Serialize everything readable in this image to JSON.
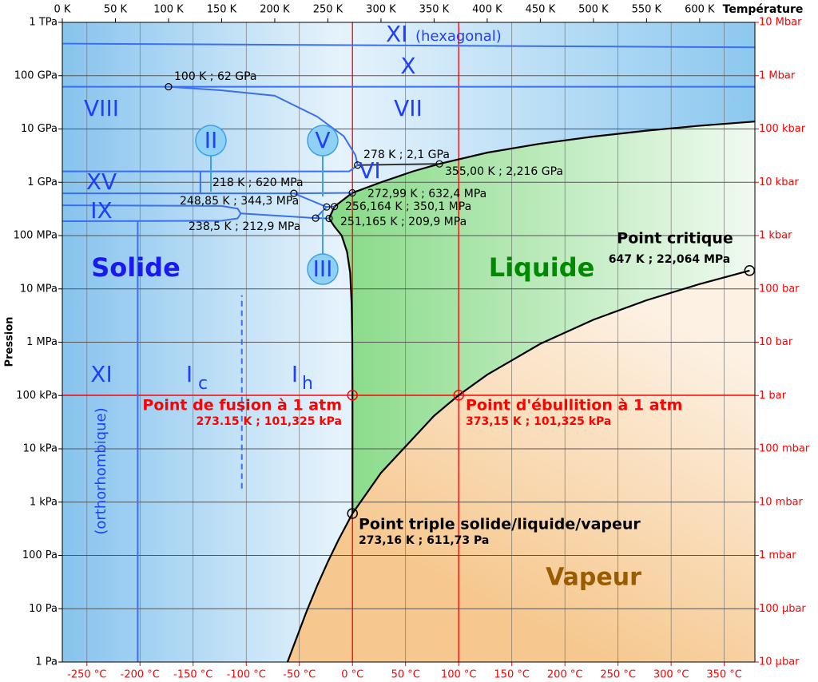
{
  "chart_data": {
    "type": "phase",
    "x_title": "Température",
    "y_title": "Pression",
    "xlim": [
      0,
      652
    ],
    "xticks": [
      {
        "value": 0,
        "label": "0 K"
      },
      {
        "value": 50,
        "label": "50 K"
      },
      {
        "value": 100,
        "label": "100 K"
      },
      {
        "value": 150,
        "label": "150 K"
      },
      {
        "value": 200,
        "label": "200 K"
      },
      {
        "value": 250,
        "label": "250 K"
      },
      {
        "value": 300,
        "label": "300 K"
      },
      {
        "value": 350,
        "label": "350 K"
      },
      {
        "value": 400,
        "label": "400 K"
      },
      {
        "value": 450,
        "label": "450 K"
      },
      {
        "value": 500,
        "label": "500 K"
      },
      {
        "value": 550,
        "label": "550 K"
      },
      {
        "value": 600,
        "label": "600 K"
      }
    ],
    "x2lim": [
      -273.15,
      378.85
    ],
    "x2ticks": [
      {
        "value": -250,
        "label": "-250 °C"
      },
      {
        "value": -200,
        "label": "-200 °C"
      },
      {
        "value": -150,
        "label": "-150 °C"
      },
      {
        "value": -100,
        "label": "-100 °C"
      },
      {
        "value": -50,
        "label": "-50 °C"
      },
      {
        "value": 0,
        "label": "0 °C"
      },
      {
        "value": 50,
        "label": "50 °C"
      },
      {
        "value": 100,
        "label": "100 °C"
      },
      {
        "value": 150,
        "label": "150 °C"
      },
      {
        "value": 200,
        "label": "200 °C"
      },
      {
        "value": 250,
        "label": "250 °C"
      },
      {
        "value": 300,
        "label": "300 °C"
      },
      {
        "value": 350,
        "label": "350 °C"
      }
    ],
    "x2_color": "#ff0000",
    "yscale": "log",
    "ylim": [
      1,
      1000000000000
    ],
    "yticks": [
      {
        "value": 1,
        "label": "1 Pa"
      },
      {
        "value": 10,
        "label": "10 Pa"
      },
      {
        "value": 100,
        "label": "100 Pa"
      },
      {
        "value": 1000,
        "label": "1 kPa"
      },
      {
        "value": 10000,
        "label": "10 kPa"
      },
      {
        "value": 100000,
        "label": "100 kPa"
      },
      {
        "value": 1000000,
        "label": "1 MPa"
      },
      {
        "value": 10000000,
        "label": "10 MPa"
      },
      {
        "value": 100000000,
        "label": "100 MPa"
      },
      {
        "value": 1000000000,
        "label": "1 GPa"
      },
      {
        "value": 10000000000,
        "label": "10 GPa"
      },
      {
        "value": 100000000000,
        "label": "100 GPa"
      },
      {
        "value": 1000000000000,
        "label": "1 TPa"
      }
    ],
    "y2lim": [
      1e-05,
      10000000
    ],
    "y2ticks": [
      {
        "value": 1e-05,
        "label": "10 µbar"
      },
      {
        "value": 0.0001,
        "label": "100 µbar"
      },
      {
        "value": 0.001,
        "label": "1 mbar"
      },
      {
        "value": 0.01,
        "label": "10 mbar"
      },
      {
        "value": 0.1,
        "label": "100 mbar"
      },
      {
        "value": 1,
        "label": "1 bar"
      },
      {
        "value": 10,
        "label": "10 bar"
      },
      {
        "value": 100,
        "label": "100 bar"
      },
      {
        "value": 1000,
        "label": "1 kbar"
      },
      {
        "value": 10000,
        "label": "10 kbar"
      },
      {
        "value": 100000,
        "label": "100 kbar"
      },
      {
        "value": 1000000,
        "label": "1 Mbar"
      },
      {
        "value": 10000000,
        "label": "10 Mbar"
      }
    ],
    "y2_color": "#ff0000",
    "grid": true,
    "series": [
      {
        "color": "#000000",
        "x": [
          273.16,
          300,
          350,
          373.15,
          400,
          450,
          500,
          550,
          600,
          647
        ],
        "values": [
          611.73,
          3537,
          41680,
          101325,
          245770,
          932200,
          2639200,
          6117000,
          12345000,
          22064000
        ]
      },
      {
        "color": "#000000",
        "x": [
          212,
          220,
          230,
          240,
          250,
          260,
          273.16
        ],
        "values": [
          1,
          2.65,
          8.94,
          27.3,
          76,
          196,
          611.73
        ]
      },
      {
        "color": "#000000",
        "x": [
          273.16,
          273.15,
          273.0,
          272.4,
          271,
          268,
          263,
          256,
          251.165
        ],
        "values": [
          611.73,
          101325,
          1000000,
          5000000,
          20000000,
          50000000,
          100000000,
          150000000,
          209900000
        ]
      },
      {
        "color": "#000000",
        "x": [
          251.165,
          256.164
        ],
        "values": [
          209900000,
          350100000
        ]
      },
      {
        "color": "#000000",
        "x": [
          256.164,
          272.99
        ],
        "values": [
          350100000,
          632400000
        ]
      },
      {
        "color": "#000000",
        "x": [
          272.99,
          300,
          330,
          355
        ],
        "values": [
          632400000,
          1000000000,
          1600000000,
          2216000000
        ]
      },
      {
        "color": "#000000",
        "x": [
          355,
          400,
          450,
          500,
          550,
          600,
          652
        ],
        "values": [
          2216000000,
          3600000000,
          5300000000,
          7200000000,
          9300000000,
          11500000000,
          13800000000
        ]
      },
      {
        "color": "#333333",
        "x": [
          278,
          355
        ],
        "values": [
          2100000000,
          2216000000
        ]
      },
      {
        "color": "#3a6ff0",
        "x": [
          100,
          150,
          200,
          240,
          265,
          276,
          278
        ],
        "values": [
          62000000000,
          53000000000,
          42000000000,
          17000000000,
          7300000000,
          3200000000,
          2100000000
        ]
      },
      {
        "color": "#3a6ff0",
        "x": [
          0,
          652
        ],
        "values": [
          62000000000,
          62000000000
        ]
      },
      {
        "color": "#3a6ff0",
        "x": [
          0,
          652
        ],
        "values": [
          400000000000,
          340000000000
        ]
      },
      {
        "color": "#3a6ff0",
        "x": [
          0,
          270,
          278
        ],
        "values": [
          1600000000,
          1600000000,
          2100000000
        ]
      },
      {
        "color": "#3a6ff0",
        "x": [
          130,
          130
        ],
        "values": [
          620000000,
          1600000000
        ]
      },
      {
        "color": "#3a6ff0",
        "x": [
          0,
          218
        ],
        "values": [
          620000000,
          620000000
        ]
      },
      {
        "color": "#3a6ff0",
        "x": [
          218,
          248.85
        ],
        "values": [
          620000000,
          344300000
        ]
      },
      {
        "color": "#3a6ff0",
        "x": [
          218,
          272.99
        ],
        "values": [
          620000000,
          632400000
        ]
      },
      {
        "color": "#3a6ff0",
        "x": [
          248.85,
          238.5
        ],
        "values": [
          344300000,
          212900000
        ]
      },
      {
        "color": "#3a6ff0",
        "x": [
          248.85,
          256.164
        ],
        "values": [
          344300000,
          350100000
        ]
      },
      {
        "color": "#3a6ff0",
        "x": [
          238.5,
          251.165
        ],
        "values": [
          212900000,
          209900000
        ]
      },
      {
        "color": "#3a6ff0",
        "x": [
          0,
          150,
          165,
          168,
          165,
          150,
          0
        ],
        "values": [
          370000000,
          360000000,
          320000000,
          260000000,
          210000000,
          190000000,
          186000000
        ]
      },
      {
        "color": "#3a6ff0",
        "x": [
          168,
          238.5
        ],
        "values": [
          260000000,
          212900000
        ]
      },
      {
        "color": "#3a6ff0",
        "x": [
          71,
          71
        ],
        "values": [
          1,
          186000000
        ]
      },
      {
        "color": "#3a6ff0",
        "dashed": true,
        "x": [
          169,
          169
        ],
        "values": [
          1800,
          7600000
        ]
      }
    ],
    "reference_color": "#ff0000",
    "reference_lines": [
      {
        "axis": "y",
        "value": 101325
      },
      {
        "axis": "x",
        "value": 273.15
      },
      {
        "axis": "x",
        "value": 373.15
      }
    ],
    "points": [
      {
        "x": 100,
        "y": 62000000000,
        "label": "100 K ; 62 GPa",
        "color": "#000000"
      },
      {
        "x": 278,
        "y": 2100000000,
        "label": "278 K ; 2,1 GPa",
        "color": "#000000"
      },
      {
        "x": 355,
        "y": 2216000000,
        "label": "355,00 K ; 2,216 GPa",
        "color": "#000000"
      },
      {
        "x": 218,
        "y": 620000000,
        "label": "218 K ; 620 MPa",
        "color": "#000000"
      },
      {
        "x": 272.99,
        "y": 632400000,
        "label": "272,99 K ; 632,4 MPa",
        "color": "#000000"
      },
      {
        "x": 248.85,
        "y": 344300000,
        "label": "248,85 K ; 344,3 MPa",
        "color": "#000000"
      },
      {
        "x": 256.164,
        "y": 350100000,
        "label": "256,164 K ; 350,1 MPa",
        "color": "#000000"
      },
      {
        "x": 238.5,
        "y": 212900000,
        "label": "238,5 K ; 212,9 MPa",
        "color": "#000000"
      },
      {
        "x": 251.165,
        "y": 209900000,
        "label": "251,165 K ; 209,9 MPa",
        "color": "#000000"
      },
      {
        "x": 647,
        "y": 22064000,
        "name": "Point critique",
        "label": "647 K ; 22,064 MPa",
        "color": "#000000"
      },
      {
        "x": 273.16,
        "y": 611.73,
        "name": "Point triple solide/liquide/vapeur",
        "label": "273,16 K ; 611,73 Pa",
        "color": "#000000"
      },
      {
        "x": 273.15,
        "y": 101325,
        "name": "Point de fusion à 1 atm",
        "label": "273.15 K ; 101,325 kPa",
        "color": "#ff0000"
      },
      {
        "x": 373.15,
        "y": 101325,
        "name": "Point d'ébullition à 1 atm",
        "label": "373,15 K ; 101,325 kPa",
        "color": "#ff0000"
      }
    ],
    "phase_labels": [
      "XI",
      "(hexagonal)",
      "X",
      "VIII",
      "VII",
      "II",
      "V",
      "VI",
      "XV",
      "IX",
      "III",
      "Solide",
      "Liquide",
      "Vapeur",
      "XI",
      "(orthorhombique)",
      "I",
      "c",
      "I",
      "h"
    ]
  }
}
